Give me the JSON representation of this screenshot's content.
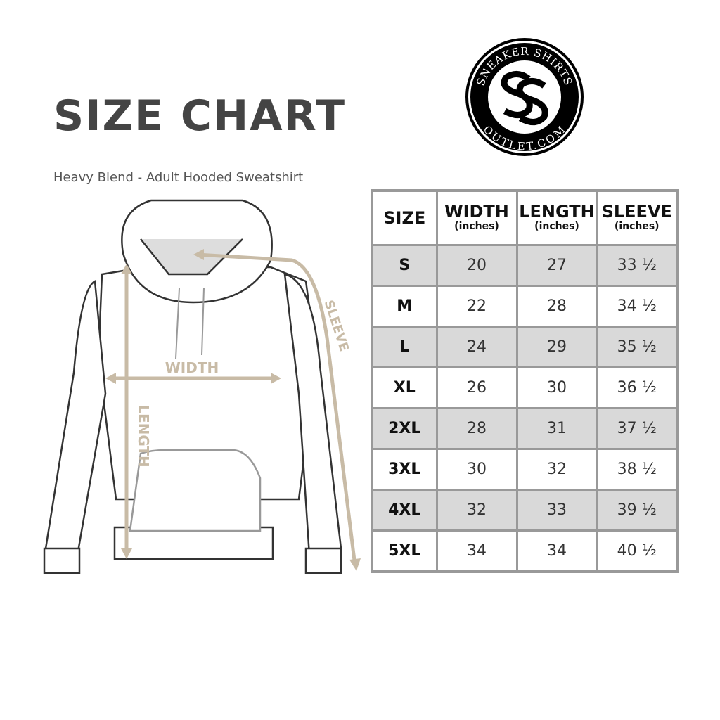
{
  "header": {
    "title": "SIZE CHART",
    "subtitle": "Heavy Blend - Adult Hooded Sweatshirt"
  },
  "logo": {
    "top_text": "SNEAKER SHIRTS",
    "bottom_text": "OUTLET.COM",
    "monogram": "SS"
  },
  "diagram": {
    "width_label": "WIDTH",
    "length_label": "LENGTH",
    "sleeve_label": "SLEEVE",
    "arrow_color": "#c8bba6"
  },
  "table": {
    "columns": [
      {
        "label": "SIZE",
        "unit": ""
      },
      {
        "label": "WIDTH",
        "unit": "(inches)"
      },
      {
        "label": "LENGTH",
        "unit": "(inches)"
      },
      {
        "label": "SLEEVE",
        "unit": "(inches)"
      }
    ],
    "rows": [
      [
        "S",
        "20",
        "27",
        "33 ½"
      ],
      [
        "M",
        "22",
        "28",
        "34 ½"
      ],
      [
        "L",
        "24",
        "29",
        "35 ½"
      ],
      [
        "XL",
        "26",
        "30",
        "36 ½"
      ],
      [
        "2XL",
        "28",
        "31",
        "37 ½"
      ],
      [
        "3XL",
        "30",
        "32",
        "38 ½"
      ],
      [
        "4XL",
        "32",
        "33",
        "39 ½"
      ],
      [
        "5XL",
        "34",
        "34",
        "40 ½"
      ]
    ]
  }
}
